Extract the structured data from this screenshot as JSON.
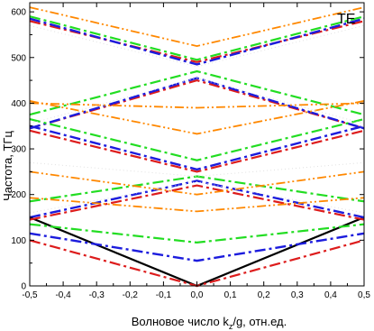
{
  "chart_data": {
    "type": "line",
    "corner_label": "TE",
    "xlabel": "Волновое число k",
    "xlabel_sub": "z",
    "xlabel_tail": "/g, отн.ед.",
    "ylabel": "Частота, ТГц",
    "xlim": [
      -0.5,
      0.5
    ],
    "ylim": [
      0,
      620
    ],
    "xticks": [
      "-0,5",
      "-0,4",
      "-0,3",
      "-0,2",
      "-0,1",
      "0,0",
      "0,1",
      "0,2",
      "0,3",
      "0,4",
      "0,5"
    ],
    "xtick_values": [
      -0.5,
      -0.4,
      -0.3,
      -0.2,
      -0.1,
      0.0,
      0.1,
      0.2,
      0.3,
      0.4,
      0.5
    ],
    "yticks": [
      "0",
      "100",
      "200",
      "300",
      "400",
      "500",
      "600"
    ],
    "ytick_values": [
      0,
      100,
      200,
      300,
      400,
      500,
      600
    ],
    "grid": false,
    "series": [
      {
        "color": "#000000",
        "style": "solid",
        "width": 2.2,
        "bands": [
          [
            0,
            150
          ]
        ]
      },
      {
        "color": "#dd1c1c",
        "style": "dashdot",
        "width": 2.2,
        "bands": [
          [
            0,
            100
          ],
          [
            220,
            145
          ],
          [
            250,
            340
          ],
          [
            450,
            345
          ],
          [
            490,
            580
          ]
        ]
      },
      {
        "color": "#1c1cdd",
        "style": "dashdot",
        "width": 2.4,
        "bands": [
          [
            55,
            115
          ],
          [
            230,
            150
          ],
          [
            255,
            350
          ],
          [
            455,
            345
          ],
          [
            485,
            585
          ]
        ]
      },
      {
        "color": "#22dd22",
        "style": "dashdot",
        "width": 2.2,
        "bands": [
          [
            95,
            135
          ],
          [
            240,
            185
          ],
          [
            275,
            365
          ],
          [
            470,
            375
          ],
          [
            495,
            590
          ]
        ]
      },
      {
        "color": "#ff8800",
        "style": "dashdotdot",
        "width": 1.8,
        "bands": [
          [
            163,
            193
          ],
          [
            200,
            250
          ],
          [
            333,
            405
          ],
          [
            390,
            400
          ],
          [
            525,
            610
          ]
        ]
      },
      {
        "color": "#e0e0e0",
        "style": "dot",
        "width": 1.0,
        "bands": [
          [
            228,
            160
          ],
          [
            240,
            270
          ],
          [
            455,
            355
          ],
          [
            480,
            570
          ]
        ]
      }
    ]
  }
}
